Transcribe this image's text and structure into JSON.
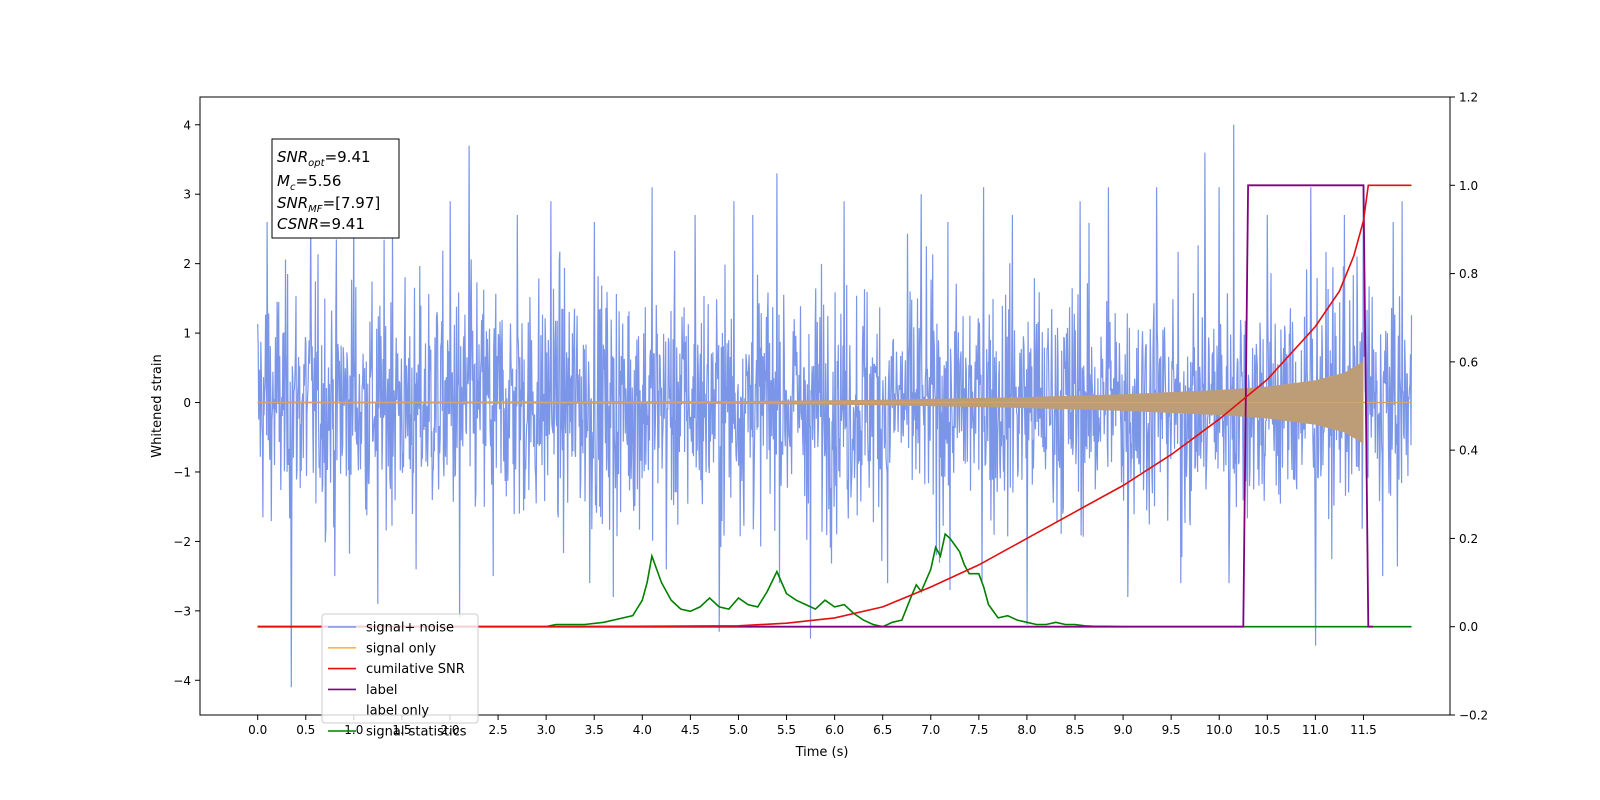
{
  "chart_data": {
    "type": "line",
    "xlabel": "Time (s)",
    "ylabel": "Whitened strain",
    "xlim": [
      -0.6,
      12.4
    ],
    "ylim": [
      -4.5,
      4.4
    ],
    "y2lim": [
      -0.2,
      1.2
    ],
    "x_ticks": [
      0.0,
      0.5,
      1.0,
      1.5,
      2.0,
      2.5,
      3.0,
      3.5,
      4.0,
      4.5,
      5.0,
      5.5,
      6.0,
      6.5,
      7.0,
      7.5,
      8.0,
      8.5,
      9.0,
      9.5,
      10.0,
      10.5,
      11.0,
      11.5
    ],
    "x_tick_labels": [
      "0.0",
      "0.5",
      "1.0",
      "1.5",
      "2.0",
      "2.5",
      "3.0",
      "3.5",
      "4.0",
      "4.5",
      "5.0",
      "5.5",
      "6.0",
      "6.5",
      "7.0",
      "7.5",
      "8.0",
      "8.5",
      "9.0",
      "9.5",
      "10.0",
      "10.5",
      "11.0",
      "11.5"
    ],
    "y_ticks": [
      4,
      3,
      2,
      1,
      0,
      -1,
      -2,
      -3,
      -4
    ],
    "y_tick_labels": [
      "4",
      "3",
      "2",
      "1",
      "0",
      "−1",
      "−2",
      "−3",
      "−4"
    ],
    "y2_ticks": [
      1.2,
      1.0,
      0.8,
      0.6,
      0.4,
      0.2,
      0.0,
      -0.2
    ],
    "y2_tick_labels": [
      "1.2",
      "1.0",
      "0.8",
      "0.6",
      "0.4",
      "0.2",
      "0.0",
      "−0.2"
    ],
    "legend_position": "lower-left",
    "textbox": {
      "snr_opt": "=9.41",
      "mc": "=5.56",
      "snr_mf": "=[7.97]",
      "csnr": "=9.41"
    },
    "series": [
      {
        "name": "signal+ noise",
        "color": "#7b96e8",
        "axis": "left",
        "noise_band": [
          -1.8,
          1.8
        ],
        "spikes": [
          [
            0.1,
            2.6
          ],
          [
            0.35,
            -4.1
          ],
          [
            0.55,
            2.7
          ],
          [
            0.8,
            -2.5
          ],
          [
            1.0,
            2.7
          ],
          [
            1.25,
            -2.9
          ],
          [
            1.4,
            2.9
          ],
          [
            1.65,
            -2.4
          ],
          [
            2.0,
            2.9
          ],
          [
            2.1,
            -3.1
          ],
          [
            2.2,
            3.7
          ],
          [
            2.45,
            -2.5
          ],
          [
            2.7,
            2.7
          ],
          [
            3.05,
            2.9
          ],
          [
            3.45,
            -2.6
          ],
          [
            3.5,
            2.6
          ],
          [
            3.7,
            -2.8
          ],
          [
            4.1,
            3.1
          ],
          [
            4.25,
            -2.4
          ],
          [
            4.55,
            2.7
          ],
          [
            4.8,
            -3.3
          ],
          [
            4.95,
            2.9
          ],
          [
            5.15,
            2.7
          ],
          [
            5.4,
            3.3
          ],
          [
            5.75,
            -3.4
          ],
          [
            6.1,
            2.9
          ],
          [
            6.55,
            -2.6
          ],
          [
            6.9,
            3.0
          ],
          [
            7.2,
            -2.7
          ],
          [
            7.55,
            3.1
          ],
          [
            7.85,
            2.7
          ],
          [
            8.0,
            -3.2
          ],
          [
            8.55,
            2.9
          ],
          [
            8.85,
            3.1
          ],
          [
            9.05,
            -2.8
          ],
          [
            9.35,
            3.1
          ],
          [
            9.6,
            -2.6
          ],
          [
            9.85,
            3.6
          ],
          [
            10.0,
            3.1
          ],
          [
            10.1,
            -2.6
          ],
          [
            10.15,
            4.0
          ],
          [
            10.5,
            2.7
          ],
          [
            10.95,
            3.1
          ],
          [
            11.0,
            -3.5
          ],
          [
            11.3,
            2.7
          ],
          [
            11.5,
            3.1
          ],
          [
            11.7,
            -2.5
          ],
          [
            11.9,
            2.9
          ]
        ]
      },
      {
        "name": "signal only",
        "color": "#ffb347",
        "fill_color": "#bc9d78",
        "axis": "left",
        "envelope": [
          [
            0.0,
            0.01
          ],
          [
            5.0,
            0.02
          ],
          [
            6.5,
            0.04
          ],
          [
            8.0,
            0.08
          ],
          [
            9.0,
            0.12
          ],
          [
            10.0,
            0.18
          ],
          [
            10.5,
            0.23
          ],
          [
            11.0,
            0.32
          ],
          [
            11.3,
            0.43
          ],
          [
            11.45,
            0.55
          ],
          [
            11.5,
            0.6
          ]
        ]
      },
      {
        "name": "cumilative SNR",
        "color": "#e01010",
        "axis": "right",
        "x": [
          0.0,
          3.0,
          5.0,
          5.5,
          6.0,
          6.5,
          7.0,
          7.5,
          8.0,
          8.5,
          9.0,
          9.5,
          10.0,
          10.5,
          11.0,
          11.25,
          11.4,
          11.5,
          11.55,
          12.0
        ],
        "y": [
          0.0,
          0.0,
          0.002,
          0.008,
          0.02,
          0.045,
          0.09,
          0.14,
          0.2,
          0.26,
          0.32,
          0.39,
          0.47,
          0.56,
          0.68,
          0.76,
          0.84,
          0.92,
          1.0,
          1.0
        ]
      },
      {
        "name": "label",
        "color": "#800080",
        "axis": "right",
        "x": [
          0.0,
          10.25,
          10.3,
          11.5,
          11.55,
          11.6
        ],
        "y": [
          0.0,
          0.0,
          1.0,
          1.0,
          0.0,
          0.0
        ]
      },
      {
        "name": "label only",
        "color": "#ffffff",
        "axis": "right",
        "hidden": true
      },
      {
        "name": "signal statistics",
        "color": "#008000",
        "axis": "right",
        "x": [
          0.0,
          3.0,
          3.1,
          3.4,
          3.6,
          3.8,
          3.9,
          4.0,
          4.05,
          4.1,
          4.2,
          4.3,
          4.4,
          4.5,
          4.6,
          4.7,
          4.8,
          4.9,
          5.0,
          5.1,
          5.2,
          5.3,
          5.4,
          5.5,
          5.6,
          5.7,
          5.8,
          5.9,
          6.0,
          6.1,
          6.2,
          6.3,
          6.4,
          6.5,
          6.6,
          6.7,
          6.8,
          6.85,
          6.9,
          6.95,
          7.0,
          7.05,
          7.1,
          7.15,
          7.2,
          7.25,
          7.3,
          7.35,
          7.4,
          7.45,
          7.5,
          7.55,
          7.6,
          7.7,
          7.8,
          7.9,
          8.0,
          8.1,
          8.2,
          8.3,
          8.4,
          8.5,
          8.6,
          8.7,
          8.8,
          9.0,
          9.5,
          10.0,
          12.0
        ],
        "y": [
          0.0,
          0.0,
          0.005,
          0.005,
          0.01,
          0.02,
          0.025,
          0.06,
          0.1,
          0.16,
          0.1,
          0.06,
          0.04,
          0.035,
          0.045,
          0.065,
          0.045,
          0.04,
          0.065,
          0.05,
          0.045,
          0.08,
          0.125,
          0.075,
          0.06,
          0.05,
          0.04,
          0.06,
          0.045,
          0.05,
          0.03,
          0.015,
          0.005,
          0.0,
          0.01,
          0.015,
          0.07,
          0.095,
          0.08,
          0.105,
          0.13,
          0.18,
          0.16,
          0.21,
          0.2,
          0.185,
          0.17,
          0.14,
          0.12,
          0.12,
          0.12,
          0.09,
          0.05,
          0.02,
          0.025,
          0.015,
          0.01,
          0.005,
          0.005,
          0.01,
          0.005,
          0.005,
          0.002,
          0.001,
          0.001,
          0.0,
          0.0,
          0.0,
          0.0
        ]
      }
    ]
  }
}
